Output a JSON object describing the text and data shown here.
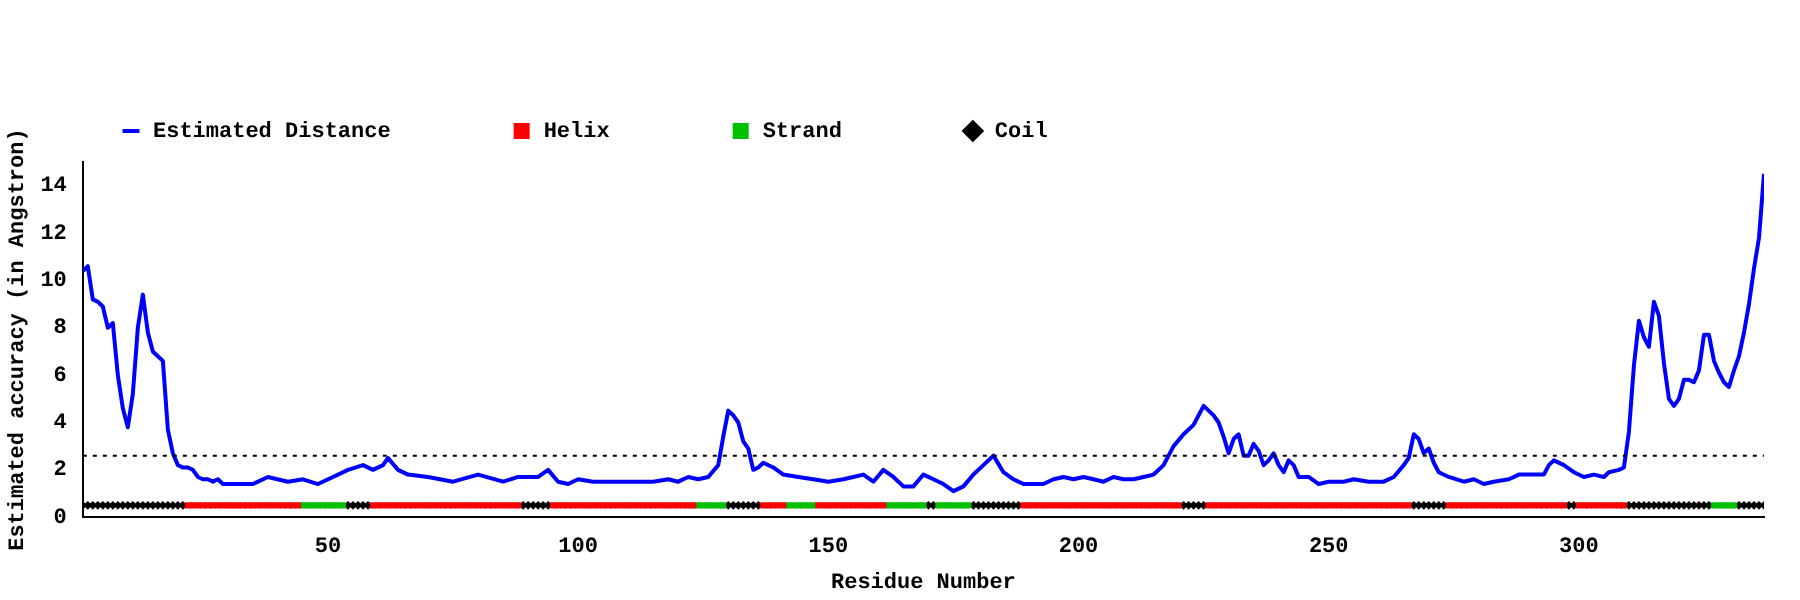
{
  "chart_data": {
    "type": "line",
    "xlabel": "Residue Number",
    "ylabel": "Estimated accuracy (in Angstron)",
    "xlim": [
      1,
      337
    ],
    "xticks": [
      50,
      100,
      150,
      200,
      250,
      300
    ],
    "ylim": [
      0,
      15
    ],
    "yticks": [
      0,
      2,
      4,
      6,
      8,
      10,
      12,
      14
    ],
    "grid": false,
    "legend": "top",
    "ref_lines": [
      {
        "axis": "y",
        "value": 2.6,
        "line_style": "dotted",
        "color": "#000000"
      }
    ],
    "series": [
      {
        "name": "Estimated Distance",
        "type": "line",
        "color": "#0000ff",
        "marker": "none",
        "line_style": "solid",
        "x": [
          1,
          2,
          3,
          4,
          5,
          6,
          7,
          8,
          9,
          10,
          11,
          12,
          13,
          14,
          15,
          16,
          17,
          18,
          19,
          20,
          21,
          22,
          23,
          24,
          25,
          26,
          27,
          28,
          29,
          30,
          35,
          38,
          42,
          45,
          48,
          51,
          54,
          57,
          59,
          61,
          62,
          64,
          66,
          70,
          75,
          80,
          85,
          88,
          92,
          94,
          96,
          98,
          100,
          103,
          105,
          110,
          115,
          118,
          120,
          122,
          124,
          126,
          128,
          129,
          130,
          131,
          132,
          133,
          134,
          135,
          136,
          137,
          139,
          141,
          144,
          147,
          150,
          153,
          155,
          157,
          159,
          161,
          163,
          165,
          167,
          169,
          171,
          173,
          175,
          177,
          179,
          181,
          183,
          185,
          187,
          189,
          191,
          193,
          195,
          197,
          199,
          201,
          203,
          205,
          207,
          209,
          211,
          213,
          215,
          217,
          219,
          221,
          223,
          225,
          226,
          227,
          228,
          229,
          230,
          231,
          232,
          233,
          234,
          235,
          236,
          237,
          238,
          239,
          240,
          241,
          242,
          243,
          244,
          246,
          248,
          250,
          253,
          255,
          258,
          261,
          263,
          265,
          266,
          267,
          268,
          269,
          270,
          271,
          272,
          274,
          277,
          279,
          281,
          283,
          286,
          288,
          291,
          293,
          294,
          295,
          297,
          299,
          301,
          303,
          305,
          306,
          308,
          309,
          310,
          311,
          312,
          313,
          314,
          315,
          316,
          317,
          318,
          319,
          320,
          321,
          322,
          323,
          324,
          325,
          326,
          327,
          328,
          329,
          330,
          331,
          332,
          333,
          334,
          335,
          336,
          337
        ],
        "values": [
          10.4,
          10.6,
          9.2,
          9.1,
          8.9,
          8.0,
          8.2,
          6.0,
          4.6,
          3.8,
          5.2,
          8.0,
          9.4,
          7.8,
          7.0,
          6.8,
          6.6,
          3.7,
          2.7,
          2.2,
          2.1,
          2.1,
          2.0,
          1.7,
          1.6,
          1.6,
          1.5,
          1.6,
          1.4,
          1.4,
          1.4,
          1.7,
          1.5,
          1.6,
          1.4,
          1.7,
          2.0,
          2.2,
          2.0,
          2.2,
          2.5,
          2.0,
          1.8,
          1.7,
          1.5,
          1.8,
          1.5,
          1.7,
          1.7,
          2.0,
          1.5,
          1.4,
          1.6,
          1.5,
          1.5,
          1.5,
          1.5,
          1.6,
          1.5,
          1.7,
          1.6,
          1.7,
          2.2,
          3.4,
          4.5,
          4.3,
          4.0,
          3.2,
          2.9,
          2.0,
          2.1,
          2.3,
          2.1,
          1.8,
          1.7,
          1.6,
          1.5,
          1.6,
          1.7,
          1.8,
          1.5,
          2.0,
          1.7,
          1.3,
          1.3,
          1.8,
          1.6,
          1.4,
          1.1,
          1.3,
          1.8,
          2.2,
          2.6,
          1.9,
          1.6,
          1.4,
          1.4,
          1.4,
          1.6,
          1.7,
          1.6,
          1.7,
          1.6,
          1.5,
          1.7,
          1.6,
          1.6,
          1.7,
          1.8,
          2.2,
          3.0,
          3.5,
          3.9,
          4.7,
          4.5,
          4.3,
          4.0,
          3.4,
          2.7,
          3.3,
          3.5,
          2.6,
          2.6,
          3.1,
          2.8,
          2.2,
          2.4,
          2.7,
          2.2,
          1.9,
          2.4,
          2.2,
          1.7,
          1.7,
          1.4,
          1.5,
          1.5,
          1.6,
          1.5,
          1.5,
          1.7,
          2.2,
          2.5,
          3.5,
          3.3,
          2.7,
          2.9,
          2.3,
          1.9,
          1.7,
          1.5,
          1.6,
          1.4,
          1.5,
          1.6,
          1.8,
          1.8,
          1.8,
          2.2,
          2.4,
          2.2,
          1.9,
          1.7,
          1.8,
          1.7,
          1.9,
          2.0,
          2.1,
          3.6,
          6.4,
          8.3,
          7.6,
          7.2,
          9.1,
          8.5,
          6.5,
          5.0,
          4.7,
          5.0,
          5.8,
          5.8,
          5.7,
          6.2,
          7.7,
          7.7,
          6.6,
          6.1,
          5.7,
          5.5,
          6.2,
          6.8,
          7.8,
          9.0,
          10.5,
          11.8,
          14.5
        ]
      },
      {
        "name": "Helix",
        "type": "scatter",
        "color": "#ff0000",
        "marker": "square",
        "x": [
          22,
          23,
          24,
          25,
          26,
          27,
          28,
          29,
          30,
          31,
          32,
          33,
          34,
          35,
          36,
          37,
          38,
          39,
          40,
          41,
          42,
          43,
          44,
          59,
          60,
          61,
          62,
          63,
          64,
          65,
          66,
          67,
          68,
          69,
          70,
          71,
          72,
          73,
          74,
          75,
          76,
          77,
          78,
          79,
          80,
          81,
          82,
          83,
          84,
          85,
          86,
          87,
          88,
          95,
          96,
          97,
          98,
          99,
          100,
          101,
          102,
          103,
          104,
          105,
          106,
          107,
          108,
          109,
          110,
          111,
          112,
          113,
          114,
          115,
          116,
          117,
          118,
          119,
          120,
          121,
          122,
          123,
          137,
          138,
          139,
          140,
          141,
          148,
          149,
          150,
          151,
          152,
          153,
          154,
          155,
          156,
          157,
          158,
          159,
          160,
          161,
          189,
          190,
          191,
          192,
          193,
          194,
          195,
          196,
          197,
          198,
          199,
          200,
          201,
          202,
          203,
          204,
          205,
          206,
          207,
          208,
          209,
          210,
          211,
          212,
          213,
          214,
          215,
          216,
          217,
          218,
          219,
          220,
          226,
          227,
          228,
          229,
          230,
          231,
          232,
          233,
          234,
          235,
          236,
          237,
          238,
          239,
          240,
          241,
          242,
          243,
          244,
          245,
          246,
          247,
          248,
          249,
          250,
          251,
          252,
          253,
          254,
          255,
          256,
          257,
          258,
          259,
          260,
          261,
          262,
          263,
          264,
          265,
          266,
          274,
          275,
          276,
          277,
          278,
          279,
          280,
          281,
          282,
          283,
          284,
          285,
          286,
          287,
          288,
          289,
          290,
          291,
          292,
          293,
          294,
          295,
          296,
          297,
          300,
          301,
          302,
          303,
          304,
          305,
          306,
          307,
          308,
          309
        ],
        "values": [
          0.5,
          0.5,
          0.5,
          0.5,
          0.5,
          0.5,
          0.5,
          0.5,
          0.5,
          0.5,
          0.5,
          0.5,
          0.5,
          0.5,
          0.5,
          0.5,
          0.5,
          0.5,
          0.5,
          0.5,
          0.5,
          0.5,
          0.5,
          0.5,
          0.5,
          0.5,
          0.5,
          0.5,
          0.5,
          0.5,
          0.5,
          0.5,
          0.5,
          0.5,
          0.5,
          0.5,
          0.5,
          0.5,
          0.5,
          0.5,
          0.5,
          0.5,
          0.5,
          0.5,
          0.5,
          0.5,
          0.5,
          0.5,
          0.5,
          0.5,
          0.5,
          0.5,
          0.5,
          0.5,
          0.5,
          0.5,
          0.5,
          0.5,
          0.5,
          0.5,
          0.5,
          0.5,
          0.5,
          0.5,
          0.5,
          0.5,
          0.5,
          0.5,
          0.5,
          0.5,
          0.5,
          0.5,
          0.5,
          0.5,
          0.5,
          0.5,
          0.5,
          0.5,
          0.5,
          0.5,
          0.5,
          0.5,
          0.5,
          0.5,
          0.5,
          0.5,
          0.5,
          0.5,
          0.5,
          0.5,
          0.5,
          0.5,
          0.5,
          0.5,
          0.5,
          0.5,
          0.5,
          0.5,
          0.5,
          0.5,
          0.5,
          0.5,
          0.5,
          0.5,
          0.5,
          0.5,
          0.5,
          0.5,
          0.5,
          0.5,
          0.5,
          0.5,
          0.5,
          0.5,
          0.5,
          0.5,
          0.5,
          0.5,
          0.5,
          0.5,
          0.5,
          0.5,
          0.5,
          0.5,
          0.5,
          0.5,
          0.5,
          0.5,
          0.5,
          0.5,
          0.5,
          0.5,
          0.5,
          0.5,
          0.5,
          0.5,
          0.5,
          0.5,
          0.5,
          0.5,
          0.5,
          0.5,
          0.5,
          0.5,
          0.5,
          0.5,
          0.5,
          0.5,
          0.5,
          0.5,
          0.5,
          0.5,
          0.5,
          0.5,
          0.5,
          0.5,
          0.5,
          0.5,
          0.5,
          0.5,
          0.5,
          0.5,
          0.5,
          0.5,
          0.5,
          0.5,
          0.5,
          0.5,
          0.5,
          0.5,
          0.5,
          0.5,
          0.5,
          0.5,
          0.5,
          0.5,
          0.5,
          0.5,
          0.5,
          0.5,
          0.5,
          0.5,
          0.5,
          0.5,
          0.5,
          0.5,
          0.5,
          0.5,
          0.5,
          0.5,
          0.5,
          0.5,
          0.5,
          0.5,
          0.5,
          0.5,
          0.5,
          0.5,
          0.5,
          0.5,
          0.5,
          0.5,
          0.5,
          0.5,
          0.5,
          0.5,
          0.5,
          0.5
        ]
      },
      {
        "name": "Strand",
        "type": "scatter",
        "color": "#00c000",
        "marker": "square",
        "x": [
          45,
          46,
          47,
          48,
          49,
          50,
          51,
          52,
          53,
          124,
          125,
          126,
          127,
          128,
          129,
          142,
          143,
          144,
          145,
          146,
          147,
          162,
          163,
          164,
          165,
          166,
          167,
          168,
          169,
          172,
          173,
          174,
          175,
          176,
          177,
          178,
          327,
          328,
          329,
          330,
          331
        ],
        "values": [
          0.5,
          0.5,
          0.5,
          0.5,
          0.5,
          0.5,
          0.5,
          0.5,
          0.5,
          0.5,
          0.5,
          0.5,
          0.5,
          0.5,
          0.5,
          0.5,
          0.5,
          0.5,
          0.5,
          0.5,
          0.5,
          0.5,
          0.5,
          0.5,
          0.5,
          0.5,
          0.5,
          0.5,
          0.5,
          0.5,
          0.5,
          0.5,
          0.5,
          0.5,
          0.5,
          0.5,
          0.5,
          0.5,
          0.5,
          0.5,
          0.5
        ]
      },
      {
        "name": "Coil",
        "type": "scatter",
        "color": "#000000",
        "marker": "diamond",
        "x": [
          1,
          2,
          3,
          4,
          5,
          6,
          7,
          8,
          9,
          10,
          11,
          12,
          13,
          14,
          15,
          16,
          17,
          18,
          19,
          20,
          21,
          54,
          55,
          56,
          57,
          58,
          89,
          90,
          91,
          92,
          93,
          94,
          130,
          131,
          132,
          133,
          134,
          135,
          136,
          170,
          171,
          179,
          180,
          181,
          182,
          183,
          184,
          185,
          186,
          187,
          188,
          221,
          222,
          223,
          224,
          225,
          267,
          268,
          269,
          270,
          271,
          272,
          273,
          298,
          299,
          310,
          311,
          312,
          313,
          314,
          315,
          316,
          317,
          318,
          319,
          320,
          321,
          322,
          323,
          324,
          325,
          326,
          332,
          333,
          334,
          335,
          336,
          337
        ],
        "values": [
          0.5,
          0.5,
          0.5,
          0.5,
          0.5,
          0.5,
          0.5,
          0.5,
          0.5,
          0.5,
          0.5,
          0.5,
          0.5,
          0.5,
          0.5,
          0.5,
          0.5,
          0.5,
          0.5,
          0.5,
          0.5,
          0.5,
          0.5,
          0.5,
          0.5,
          0.5,
          0.5,
          0.5,
          0.5,
          0.5,
          0.5,
          0.5,
          0.5,
          0.5,
          0.5,
          0.5,
          0.5,
          0.5,
          0.5,
          0.5,
          0.5,
          0.5,
          0.5,
          0.5,
          0.5,
          0.5,
          0.5,
          0.5,
          0.5,
          0.5,
          0.5,
          0.5,
          0.5,
          0.5,
          0.5,
          0.5,
          0.5,
          0.5,
          0.5,
          0.5,
          0.5,
          0.5,
          0.5,
          0.5,
          0.5,
          0.5,
          0.5,
          0.5,
          0.5,
          0.5,
          0.5,
          0.5,
          0.5,
          0.5,
          0.5,
          0.5,
          0.5,
          0.5,
          0.5,
          0.5,
          0.5,
          0.5,
          0.5,
          0.5,
          0.5,
          0.5,
          0.5,
          0.5
        ]
      }
    ]
  }
}
